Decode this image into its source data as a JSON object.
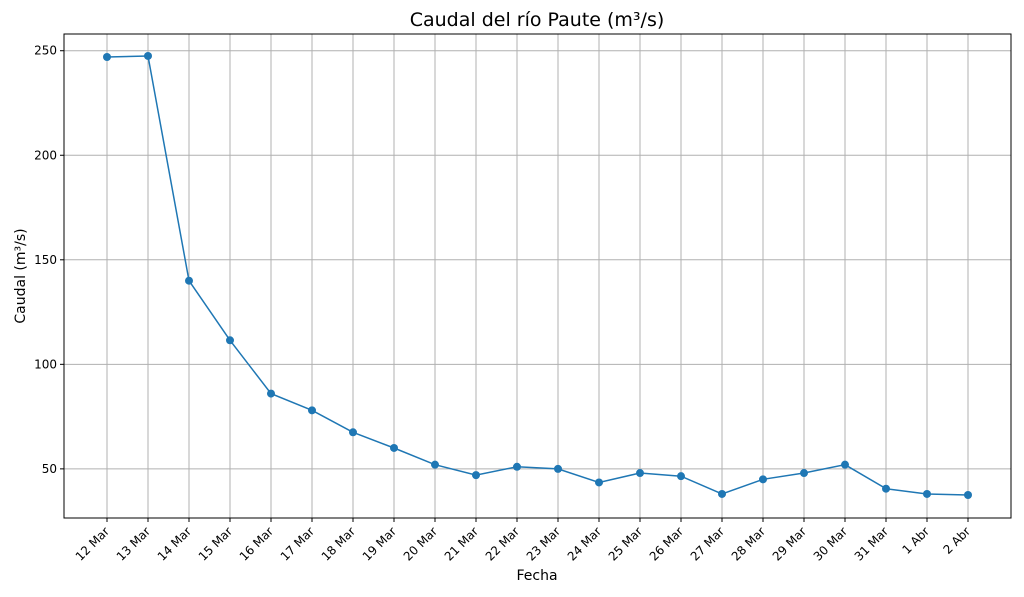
{
  "chart_data": {
    "type": "line",
    "title": "Caudal del río Paute (m³/s)",
    "xlabel": "Fecha",
    "ylabel": "Caudal (m³/s)",
    "categories": [
      "12 Mar",
      "13 Mar",
      "14 Mar",
      "15 Mar",
      "16 Mar",
      "17 Mar",
      "18 Mar",
      "19 Mar",
      "20 Mar",
      "21 Mar",
      "22 Mar",
      "23 Mar",
      "24 Mar",
      "25 Mar",
      "26 Mar",
      "27 Mar",
      "28 Mar",
      "29 Mar",
      "30 Mar",
      "31 Mar",
      "1 Abr",
      "2 Abr"
    ],
    "series": [
      {
        "values": [
          247,
          247.5,
          140,
          111.5,
          86,
          78,
          67.5,
          60,
          52,
          47,
          51,
          50,
          43.5,
          48,
          46.5,
          38,
          45,
          48,
          52,
          40.5,
          38,
          37.5
        ],
        "color": "#1f77b4"
      }
    ],
    "ylim": [
      26.5,
      258
    ],
    "yticks": [
      50,
      100,
      150,
      200,
      250
    ],
    "grid": true,
    "marker": "circle"
  }
}
